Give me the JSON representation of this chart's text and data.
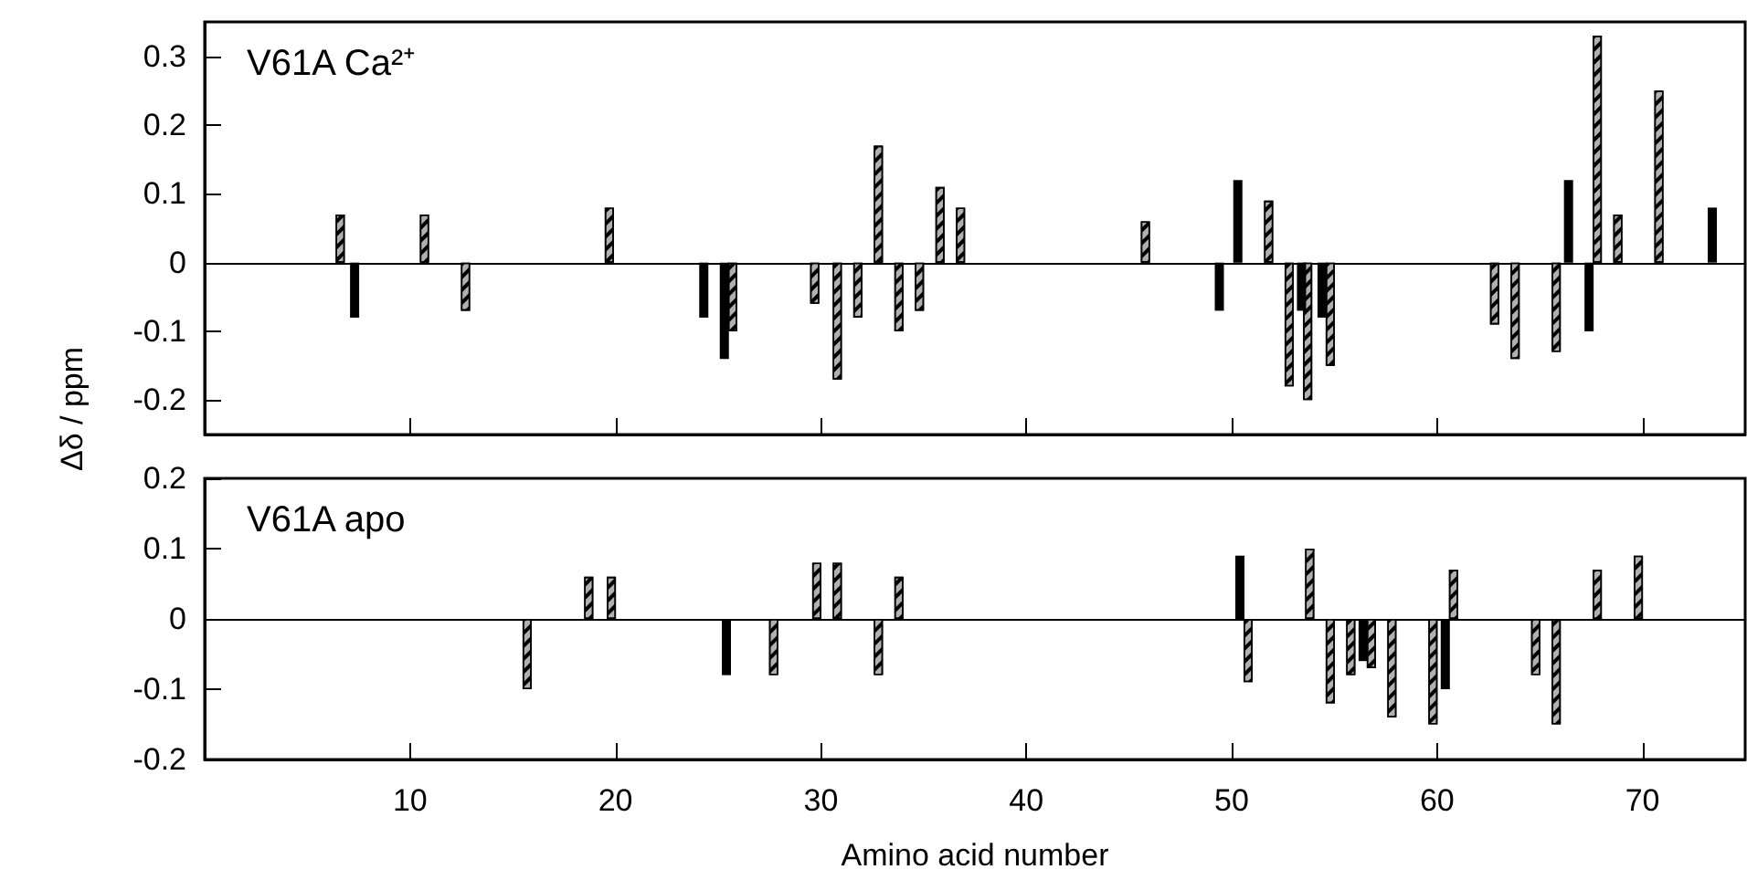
{
  "chart_data": [
    {
      "type": "bar",
      "title": "V61A Ca²⁺",
      "ylabel": "Δδ / ppm",
      "xlim": [
        0,
        75
      ],
      "xticks": [
        10,
        20,
        30,
        40,
        50,
        60,
        70
      ],
      "ylim": [
        -0.25,
        0.35
      ],
      "yticks": [
        -0.2,
        -0.1,
        0,
        0.1,
        0.2,
        0.3
      ],
      "tick_labels": "y",
      "grid": false,
      "ref_lines": [
        {
          "axis": "y",
          "value": 0
        }
      ],
      "series": [
        {
          "color": "#b0b0b0",
          "x": [
            6.6,
            10.7,
            12.7,
            19.7,
            25.7,
            29.7,
            30.8,
            31.8,
            32.8,
            33.8,
            34.8,
            35.8,
            36.8,
            45.8,
            51.8,
            52.8,
            53.7,
            54.8,
            62.8,
            63.8,
            65.8,
            67.8,
            68.8,
            70.8
          ],
          "values": [
            0.07,
            0.07,
            -0.07,
            0.08,
            -0.1,
            -0.06,
            -0.17,
            -0.08,
            0.17,
            -0.1,
            -0.07,
            0.11,
            0.08,
            0.06,
            0.09,
            -0.18,
            -0.2,
            -0.15,
            -0.09,
            -0.14,
            -0.13,
            0.33,
            0.07,
            0.25
          ]
        },
        {
          "color": "#000000",
          "x": [
            7.3,
            24.3,
            25.3,
            49.4,
            50.3,
            53.4,
            54.4,
            66.4,
            67.4,
            73.4
          ],
          "values": [
            -0.08,
            -0.08,
            -0.14,
            -0.07,
            0.12,
            -0.07,
            -0.08,
            0.12,
            -0.1,
            0.08
          ]
        }
      ]
    },
    {
      "type": "bar",
      "title": "V61A apo",
      "xlabel": "Amino acid number",
      "xlim": [
        0,
        75
      ],
      "xticks": [
        10,
        20,
        30,
        40,
        50,
        60,
        70
      ],
      "ylim": [
        -0.2,
        0.2
      ],
      "yticks": [
        -0.2,
        -0.1,
        0,
        0.1,
        0.2
      ],
      "grid": false,
      "ref_lines": [
        {
          "axis": "y",
          "value": 0
        }
      ],
      "series": [
        {
          "color": "#b0b0b0",
          "x": [
            15.7,
            18.7,
            19.8,
            27.7,
            29.8,
            30.8,
            32.8,
            33.8,
            50.8,
            53.8,
            54.8,
            55.8,
            56.8,
            57.8,
            59.8,
            60.8,
            64.8,
            65.8,
            67.8,
            69.8
          ],
          "values": [
            -0.1,
            0.06,
            0.06,
            -0.08,
            0.08,
            0.08,
            -0.08,
            0.06,
            -0.09,
            0.1,
            -0.12,
            -0.08,
            -0.07,
            -0.14,
            -0.15,
            0.07,
            -0.08,
            -0.15,
            0.07,
            0.09
          ]
        },
        {
          "color": "#000000",
          "x": [
            25.4,
            50.4,
            56.4,
            60.4
          ],
          "values": [
            -0.08,
            0.09,
            -0.06,
            -0.1
          ]
        }
      ]
    }
  ]
}
